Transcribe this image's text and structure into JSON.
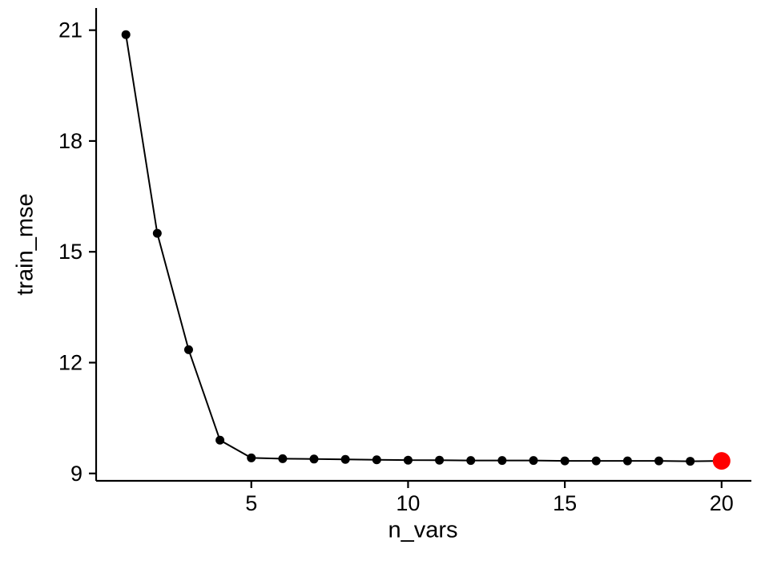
{
  "chart_data": {
    "type": "line",
    "title": "",
    "xlabel": "n_vars",
    "ylabel": "train_mse",
    "x": [
      1,
      2,
      3,
      4,
      5,
      6,
      7,
      8,
      9,
      10,
      11,
      12,
      13,
      14,
      15,
      16,
      17,
      18,
      19,
      20
    ],
    "y": [
      20.88,
      15.5,
      12.35,
      9.9,
      9.42,
      9.4,
      9.39,
      9.38,
      9.37,
      9.36,
      9.36,
      9.35,
      9.35,
      9.35,
      9.34,
      9.34,
      9.34,
      9.34,
      9.33,
      9.34
    ],
    "x_ticks": [
      5,
      10,
      15,
      20
    ],
    "y_ticks": [
      9,
      12,
      15,
      18,
      21
    ],
    "xlim": [
      0.05,
      20.95
    ],
    "ylim": [
      8.8,
      21.6
    ],
    "grid": false,
    "legend": false,
    "line_color": "#000000",
    "point_color": "#000000",
    "axis_color": "#000000",
    "background": "#ffffff",
    "highlight": {
      "x": 20,
      "color": "#ff0000"
    }
  }
}
